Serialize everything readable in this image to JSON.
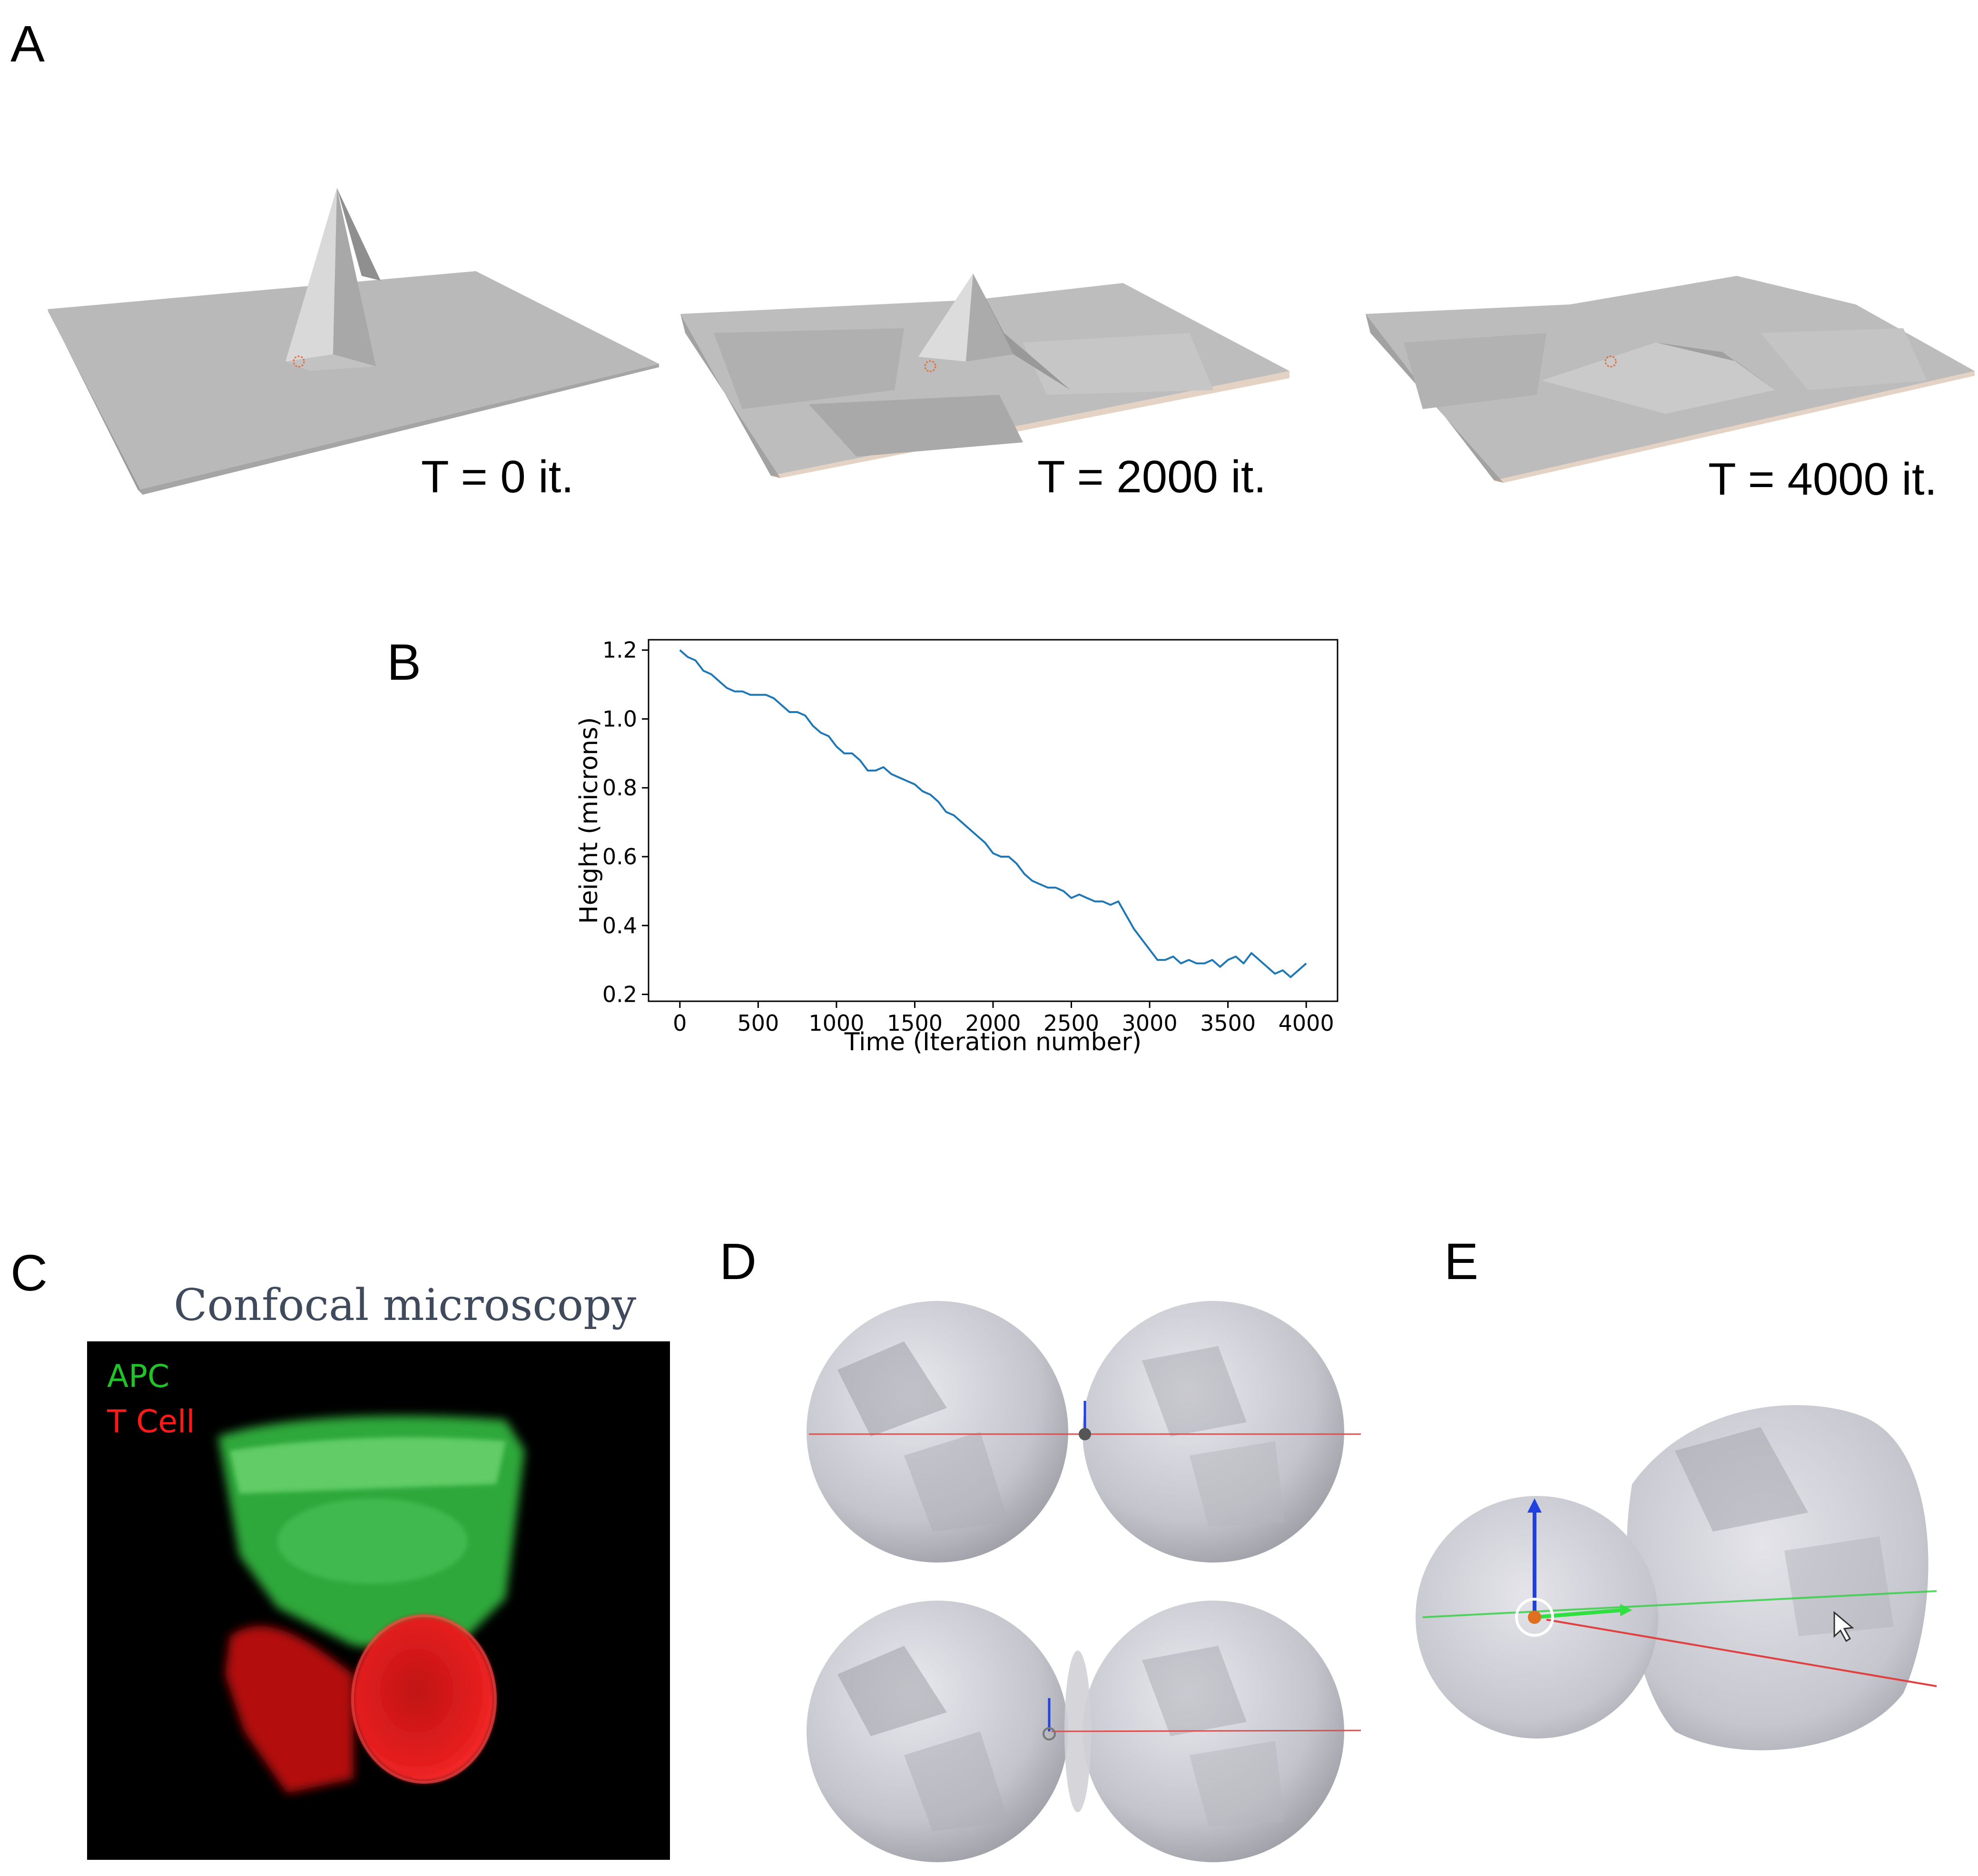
{
  "panels": {
    "a": {
      "letter": "A",
      "captions": [
        "T = 0 it.",
        "T = 2000 it.",
        "T = 4000 it."
      ]
    },
    "b": {
      "letter": "B"
    },
    "c": {
      "letter": "C",
      "title": "Confocal microscopy",
      "legend": [
        {
          "label": "APC",
          "color": "#22c22a"
        },
        {
          "label": "T Cell",
          "color": "#ff1a1a"
        }
      ]
    },
    "d": {
      "letter": "D"
    },
    "e": {
      "letter": "E"
    }
  },
  "chart_data": {
    "type": "line",
    "xlabel": "Time (Iteration number)",
    "ylabel": "Height (microns)",
    "xlim": [
      -200,
      4200
    ],
    "ylim": [
      0.18,
      1.23
    ],
    "xticks": [
      "0",
      "500",
      "1000",
      "1500",
      "2000",
      "2500",
      "3000",
      "3500",
      "4000"
    ],
    "yticks": [
      "0.2",
      "0.4",
      "0.6",
      "0.8",
      "1.0",
      "1.2"
    ],
    "series": [
      {
        "color": "#1f77b4",
        "x": [
          0,
          50,
          100,
          150,
          200,
          250,
          300,
          350,
          400,
          450,
          500,
          550,
          600,
          650,
          700,
          750,
          800,
          850,
          900,
          950,
          1000,
          1050,
          1100,
          1150,
          1200,
          1250,
          1300,
          1350,
          1400,
          1450,
          1500,
          1550,
          1600,
          1650,
          1700,
          1750,
          1800,
          1850,
          1900,
          1950,
          2000,
          2050,
          2100,
          2150,
          2200,
          2250,
          2300,
          2350,
          2400,
          2450,
          2500,
          2550,
          2600,
          2650,
          2700,
          2750,
          2800,
          2850,
          2900,
          2950,
          3000,
          3050,
          3100,
          3150,
          3200,
          3250,
          3300,
          3350,
          3400,
          3450,
          3500,
          3550,
          3600,
          3650,
          3700,
          3750,
          3800,
          3850,
          3900,
          3950,
          4000
        ],
        "y": [
          1.2,
          1.18,
          1.17,
          1.14,
          1.13,
          1.11,
          1.09,
          1.08,
          1.08,
          1.07,
          1.07,
          1.07,
          1.06,
          1.04,
          1.02,
          1.02,
          1.01,
          0.98,
          0.96,
          0.95,
          0.92,
          0.9,
          0.9,
          0.88,
          0.85,
          0.85,
          0.86,
          0.84,
          0.83,
          0.82,
          0.81,
          0.79,
          0.78,
          0.76,
          0.73,
          0.72,
          0.7,
          0.68,
          0.66,
          0.64,
          0.61,
          0.6,
          0.6,
          0.58,
          0.55,
          0.53,
          0.52,
          0.51,
          0.51,
          0.5,
          0.48,
          0.49,
          0.48,
          0.47,
          0.47,
          0.46,
          0.47,
          0.43,
          0.39,
          0.36,
          0.33,
          0.3,
          0.3,
          0.31,
          0.29,
          0.3,
          0.29,
          0.29,
          0.3,
          0.28,
          0.3,
          0.31,
          0.29,
          0.32,
          0.3,
          0.28,
          0.26,
          0.27,
          0.25,
          0.27,
          0.29
        ]
      }
    ]
  }
}
